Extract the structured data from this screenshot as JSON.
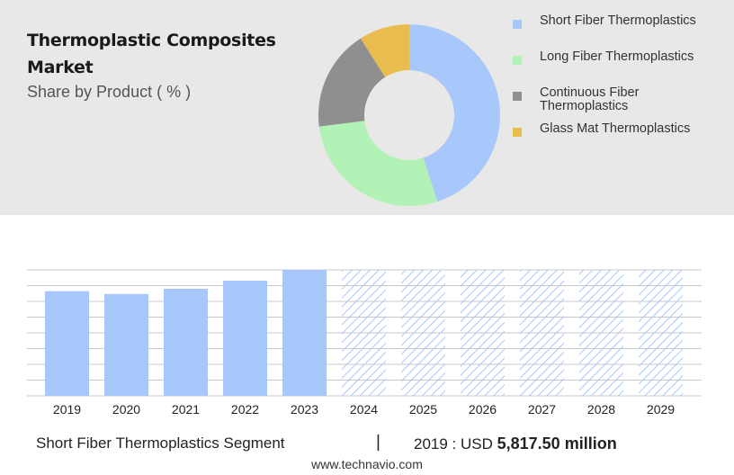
{
  "header": {
    "title_line1": "Thermoplastic Composites",
    "title_line2": "Market",
    "subtitle": "Share by Product ( % )"
  },
  "colors": {
    "short_fiber": "#a8c8fb",
    "long_fiber": "#b3f2b7",
    "continuous_fiber": "#8f8f8f",
    "glass_mat": "#e8bd4e",
    "forecast_hatch": "#a8c8fb",
    "panel_bg": "#e8e8e8",
    "gridline": "#c8c8c8"
  },
  "chart_data": [
    {
      "type": "pie",
      "variant": "donut",
      "categories": [
        "Short Fiber Thermoplastics",
        "Long Fiber Thermoplastics",
        "Continuous Fiber Thermoplastics",
        "Glass Mat Thermoplastics"
      ],
      "values": [
        45,
        28,
        18,
        9
      ],
      "legend_position": "right"
    },
    {
      "type": "bar",
      "categories": [
        "2019",
        "2020",
        "2021",
        "2022",
        "2023",
        "2024",
        "2025",
        "2026",
        "2027",
        "2028",
        "2029"
      ],
      "values": [
        5817.5,
        5660,
        5950,
        6400,
        7000,
        7000,
        7000,
        7000,
        7000,
        7000,
        7000
      ],
      "forecast_from_index": 5,
      "ylim": [
        0,
        7000
      ],
      "grid": true,
      "xlabel": "",
      "ylabel": ""
    }
  ],
  "summary": {
    "segment": "Short Fiber Thermoplastics Segment",
    "separator": "|",
    "year_label": "2019 : USD",
    "value": "5,817.50 million"
  },
  "footer": {
    "source": "www.technavio.com"
  }
}
